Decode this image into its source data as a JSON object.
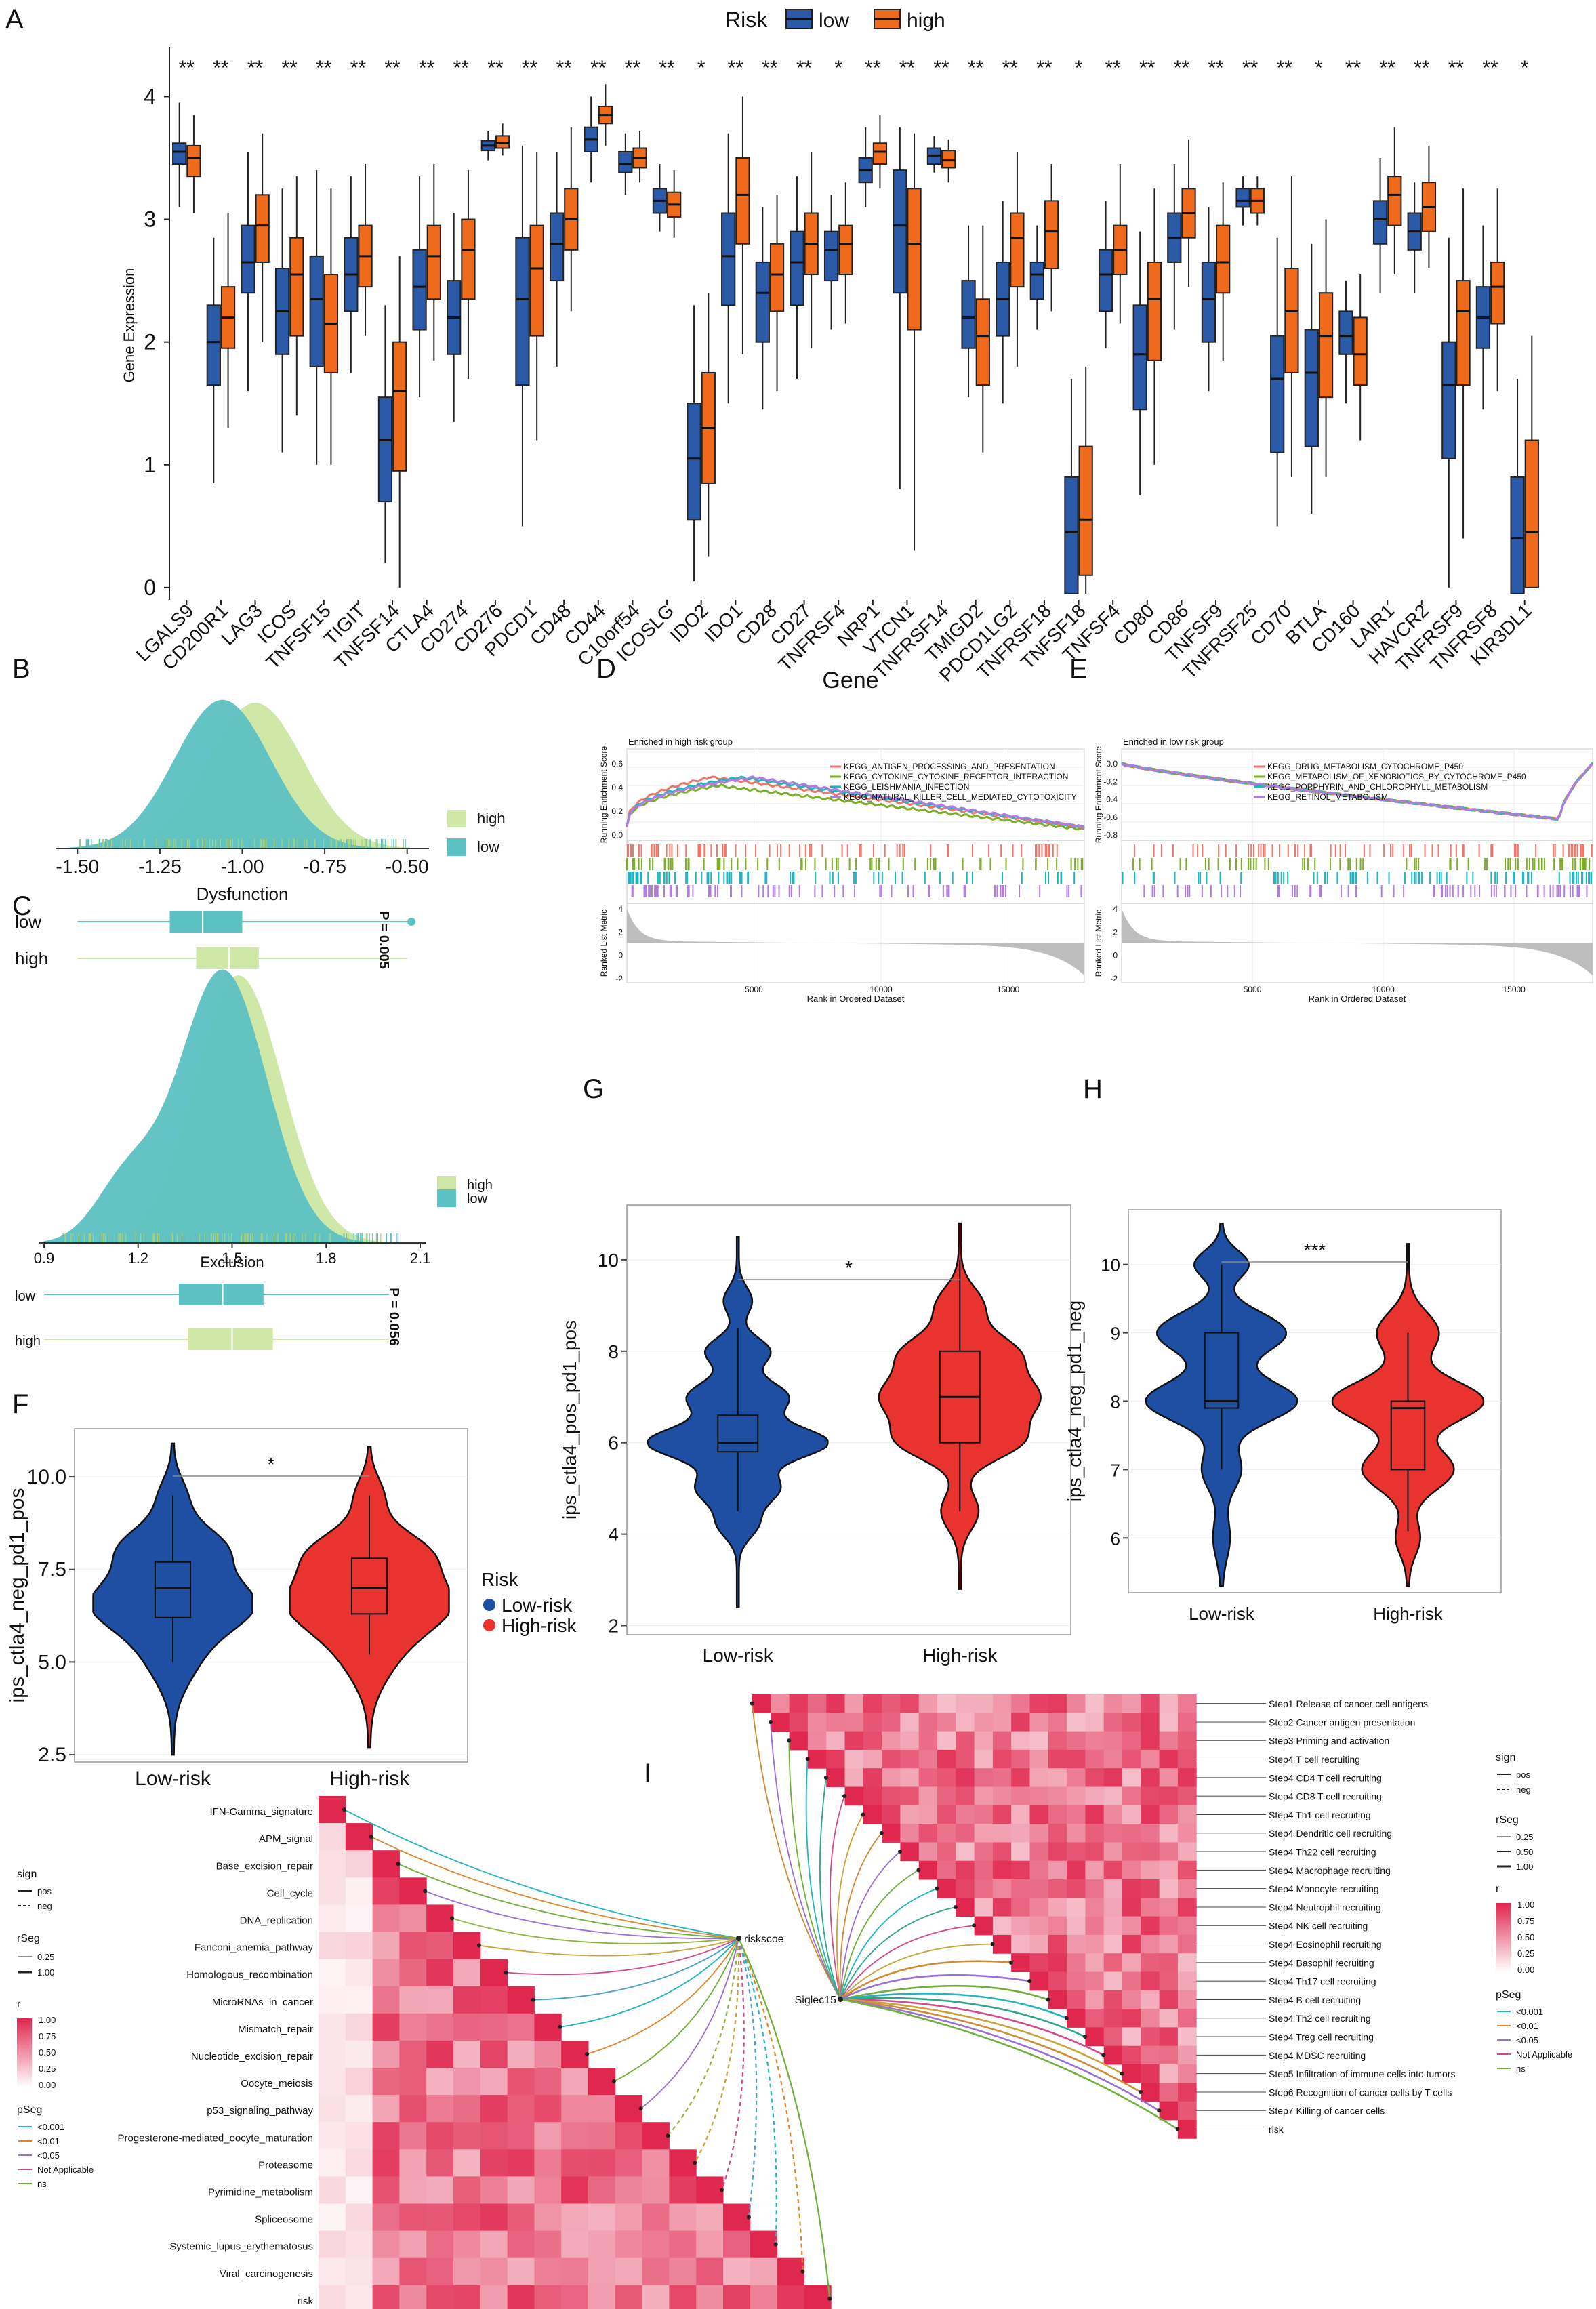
{
  "colors": {
    "low": "#2a5aa8",
    "high": "#f06a1c",
    "low_dark": "#1e4b96",
    "high_dark": "#c9510f",
    "teal": "#5cc1c2",
    "lightgreen": "#cfe8a8",
    "red": "#e8332f",
    "blue": "#1e4fa3",
    "heat": "#e0284f"
  },
  "panel_labels": [
    "A",
    "B",
    "C",
    "D",
    "E",
    "F",
    "G",
    "H",
    "I"
  ],
  "chart_data": [
    {
      "id": "A",
      "type": "box",
      "ylabel": "Gene Expression",
      "xlabel": "Gene",
      "legend_title": "Risk",
      "legend": [
        "low",
        "high"
      ],
      "ylim": [
        -0.1,
        4.4
      ],
      "yticks": [
        0,
        1,
        2,
        3,
        4
      ],
      "categories": [
        "LGALS9",
        "CD200R1",
        "LAG3",
        "ICOS",
        "TNFSF15",
        "TIGIT",
        "TNFSF14",
        "CTLA4",
        "CD274",
        "CD276",
        "PDCD1",
        "CD48",
        "CD44",
        "C10orf54",
        "ICOSLG",
        "IDO2",
        "IDO1",
        "CD28",
        "CD27",
        "TNFRSF4",
        "NRP1",
        "VTCN1",
        "TNFRSF14",
        "TMIGD2",
        "PDCD1LG2",
        "TNFRSF18",
        "TNFSF18",
        "TNFSF4",
        "CD80",
        "CD86",
        "TNFSF9",
        "TNFRSF25",
        "CD70",
        "BTLA",
        "CD160",
        "LAIR1",
        "HAVCR2",
        "TNFRSF9",
        "TNFRSF8",
        "KIR3DL1"
      ],
      "significance": [
        "**",
        "**",
        "**",
        "**",
        "**",
        "**",
        "**",
        "**",
        "**",
        "**",
        "**",
        "**",
        "**",
        "**",
        "**",
        "*",
        "**",
        "**",
        "**",
        "*",
        "**",
        "**",
        "**",
        "**",
        "**",
        "**",
        "*",
        "**",
        "**",
        "**",
        "**",
        "**",
        "**",
        "*",
        "**",
        "**",
        "**",
        "**",
        "**",
        "*"
      ],
      "series": [
        {
          "name": "low",
          "boxes": [
            [
              3.1,
              3.45,
              3.55,
              3.62,
              3.95
            ],
            [
              0.85,
              1.65,
              2.0,
              2.3,
              2.85
            ],
            [
              1.6,
              2.4,
              2.65,
              2.95,
              3.55
            ],
            [
              1.1,
              1.9,
              2.25,
              2.6,
              3.25
            ],
            [
              1.0,
              1.8,
              2.35,
              2.7,
              3.4
            ],
            [
              1.75,
              2.25,
              2.55,
              2.85,
              3.35
            ],
            [
              0.2,
              0.7,
              1.2,
              1.55,
              2.3
            ],
            [
              1.55,
              2.1,
              2.45,
              2.75,
              3.35
            ],
            [
              1.35,
              1.9,
              2.2,
              2.5,
              3.05
            ],
            [
              3.48,
              3.56,
              3.6,
              3.64,
              3.72
            ],
            [
              0.5,
              1.65,
              2.35,
              2.85,
              3.6
            ],
            [
              1.8,
              2.5,
              2.8,
              3.05,
              3.55
            ],
            [
              3.3,
              3.55,
              3.65,
              3.75,
              4.0
            ],
            [
              3.2,
              3.38,
              3.45,
              3.55,
              3.7
            ],
            [
              2.9,
              3.05,
              3.15,
              3.25,
              3.45
            ],
            [
              0.05,
              0.55,
              1.05,
              1.5,
              2.3
            ],
            [
              1.5,
              2.3,
              2.7,
              3.05,
              3.7
            ],
            [
              1.45,
              2.0,
              2.4,
              2.65,
              3.1
            ],
            [
              1.7,
              2.3,
              2.65,
              2.9,
              3.35
            ],
            [
              2.1,
              2.5,
              2.75,
              2.9,
              3.2
            ],
            [
              3.1,
              3.3,
              3.4,
              3.5,
              3.75
            ],
            [
              0.8,
              2.4,
              2.95,
              3.4,
              3.75
            ],
            [
              3.38,
              3.45,
              3.52,
              3.58,
              3.68
            ],
            [
              1.55,
              1.95,
              2.2,
              2.5,
              2.95
            ],
            [
              1.5,
              2.05,
              2.35,
              2.65,
              3.15
            ],
            [
              2.1,
              2.35,
              2.55,
              2.65,
              2.95
            ],
            [
              -0.05,
              -0.05,
              0.45,
              0.9,
              1.7
            ],
            [
              1.95,
              2.25,
              2.55,
              2.75,
              3.15
            ],
            [
              0.75,
              1.45,
              1.9,
              2.3,
              2.9
            ],
            [
              2.1,
              2.65,
              2.85,
              3.05,
              3.45
            ],
            [
              1.6,
              2.0,
              2.35,
              2.65,
              3.1
            ],
            [
              2.95,
              3.1,
              3.15,
              3.25,
              3.35
            ],
            [
              0.5,
              1.1,
              1.7,
              2.05,
              2.85
            ],
            [
              0.6,
              1.15,
              1.75,
              2.1,
              2.8
            ],
            [
              1.5,
              1.9,
              2.05,
              2.25,
              2.5
            ],
            [
              2.4,
              2.8,
              3.0,
              3.15,
              3.5
            ],
            [
              2.4,
              2.75,
              2.9,
              3.05,
              3.3
            ],
            [
              0.0,
              1.05,
              1.65,
              2.0,
              2.85
            ],
            [
              1.45,
              1.95,
              2.2,
              2.45,
              2.95
            ],
            [
              -0.05,
              -0.05,
              0.4,
              0.9,
              1.7
            ]
          ]
        },
        {
          "name": "high",
          "boxes": [
            [
              3.05,
              3.35,
              3.5,
              3.6,
              3.85
            ],
            [
              1.3,
              1.95,
              2.2,
              2.45,
              3.05
            ],
            [
              2.0,
              2.65,
              2.95,
              3.2,
              3.7
            ],
            [
              1.4,
              2.05,
              2.55,
              2.85,
              3.35
            ],
            [
              1.0,
              1.75,
              2.15,
              2.55,
              3.25
            ],
            [
              2.05,
              2.45,
              2.7,
              2.95,
              3.45
            ],
            [
              0.0,
              0.95,
              1.6,
              2.0,
              2.7
            ],
            [
              1.85,
              2.35,
              2.7,
              2.95,
              3.45
            ],
            [
              1.7,
              2.35,
              2.75,
              3.0,
              3.4
            ],
            [
              3.52,
              3.58,
              3.62,
              3.68,
              3.78
            ],
            [
              1.2,
              2.05,
              2.6,
              2.95,
              3.55
            ],
            [
              2.25,
              2.75,
              3.0,
              3.25,
              3.75
            ],
            [
              3.6,
              3.78,
              3.85,
              3.92,
              4.1
            ],
            [
              3.3,
              3.42,
              3.5,
              3.58,
              3.72
            ],
            [
              2.85,
              3.02,
              3.12,
              3.22,
              3.4
            ],
            [
              0.25,
              0.85,
              1.3,
              1.75,
              2.4
            ],
            [
              1.9,
              2.8,
              3.2,
              3.5,
              4.0
            ],
            [
              1.6,
              2.25,
              2.55,
              2.8,
              3.2
            ],
            [
              1.95,
              2.55,
              2.8,
              3.05,
              3.55
            ],
            [
              2.15,
              2.55,
              2.8,
              2.95,
              3.3
            ],
            [
              3.25,
              3.45,
              3.55,
              3.62,
              3.85
            ],
            [
              0.3,
              2.1,
              2.8,
              3.25,
              3.7
            ],
            [
              3.3,
              3.42,
              3.48,
              3.56,
              3.65
            ],
            [
              1.1,
              1.65,
              2.05,
              2.35,
              2.95
            ],
            [
              1.8,
              2.45,
              2.85,
              3.05,
              3.55
            ],
            [
              2.25,
              2.6,
              2.9,
              3.15,
              3.45
            ],
            [
              -0.05,
              0.1,
              0.55,
              1.15,
              1.8
            ],
            [
              2.15,
              2.55,
              2.75,
              2.95,
              3.45
            ],
            [
              1.0,
              1.85,
              2.35,
              2.65,
              3.25
            ],
            [
              2.45,
              2.85,
              3.05,
              3.25,
              3.65
            ],
            [
              1.85,
              2.4,
              2.65,
              2.95,
              3.3
            ],
            [
              2.95,
              3.05,
              3.15,
              3.25,
              3.35
            ],
            [
              0.9,
              1.75,
              2.25,
              2.6,
              3.35
            ],
            [
              0.9,
              1.55,
              2.05,
              2.4,
              3.0
            ],
            [
              1.2,
              1.65,
              1.9,
              2.2,
              2.55
            ],
            [
              2.55,
              2.95,
              3.2,
              3.35,
              3.75
            ],
            [
              2.6,
              2.9,
              3.1,
              3.3,
              3.6
            ],
            [
              0.4,
              1.65,
              2.25,
              2.5,
              3.25
            ],
            [
              1.6,
              2.15,
              2.45,
              2.65,
              3.25
            ],
            [
              0.0,
              0.0,
              0.45,
              1.2,
              2.05
            ]
          ]
        }
      ]
    },
    {
      "id": "B",
      "type": "density",
      "xlabel": "Dysfunction",
      "xticks": [
        "-1.50",
        "-1.25",
        "-1.00",
        "-0.75",
        "-0.50"
      ],
      "xlim": [
        -1.55,
        -0.45
      ],
      "legend": [
        "high",
        "low"
      ],
      "pvalue": "P = 0.005",
      "box_labels": [
        "low",
        "high"
      ],
      "low_peak": -1.06,
      "high_peak": -0.96,
      "box_low": [
        -1.5,
        -1.22,
        -1.12,
        -1.0,
        -0.5
      ],
      "box_high": [
        -1.5,
        -1.14,
        -1.04,
        -0.95,
        -0.5
      ]
    },
    {
      "id": "C",
      "type": "density",
      "xlabel": "Exclusion",
      "xticks": [
        "0.9",
        "1.2",
        "1.5",
        "1.8",
        "2.1"
      ],
      "xlim": [
        0.9,
        2.1
      ],
      "legend": [
        "high",
        "low"
      ],
      "pvalue": "P = 0.056",
      "box_labels": [
        "low",
        "high"
      ],
      "low_peak": 1.47,
      "high_peak": 1.52,
      "box_low": [
        0.9,
        1.33,
        1.47,
        1.6,
        2.0
      ],
      "box_high": [
        0.9,
        1.36,
        1.5,
        1.63,
        2.0
      ]
    },
    {
      "id": "D",
      "type": "gsea",
      "title": "Enriched in high risk group",
      "ylabel_top": "Running Enrichment Score",
      "ylabel_bottom": "Ranked List Metric",
      "xlabel": "Rank in Ordered Dataset",
      "xticks": [
        "5000",
        "10000",
        "15000"
      ],
      "yticks_top": [
        "0.6",
        "0.4",
        "0.2",
        "0.0"
      ],
      "yticks_bottom": [
        "4",
        "2",
        "0",
        "-2"
      ],
      "series": [
        {
          "name": "KEGG_ANTIGEN_PROCESSING_AND_PRESENTATION",
          "color": "#f0756a"
        },
        {
          "name": "KEGG_CYTOKINE_CYTOKINE_RECEPTOR_INTERACTION",
          "color": "#7cae28"
        },
        {
          "name": "KEGG_LEISHMANIA_INFECTION",
          "color": "#1fb6c1"
        },
        {
          "name": "KEGG_NATURAL_KILLER_CELL_MEDIATED_CYTOTOXICITY",
          "color": "#b07ddc"
        }
      ]
    },
    {
      "id": "E",
      "type": "gsea",
      "title": "Enriched in low risk group",
      "ylabel_top": "Running Enrichment Score",
      "ylabel_bottom": "Ranked List Metric",
      "xlabel": "Rank in Ordered Dataset",
      "xticks": [
        "5000",
        "10000",
        "15000"
      ],
      "yticks_top": [
        "0.0",
        "-0.2",
        "-0.4",
        "-0.6",
        "-0.8"
      ],
      "yticks_bottom": [
        "4",
        "2",
        "0",
        "-2"
      ],
      "series": [
        {
          "name": "KEGG_DRUG_METABOLISM_CYTOCHROME_P450",
          "color": "#f0756a"
        },
        {
          "name": "KEGG_METABOLISM_OF_XENOBIOTICS_BY_CYTOCHROME_P450",
          "color": "#7cae28"
        },
        {
          "name": "KEGG_PORPHYRIN_AND_CHLOROPHYLL_METABOLISM",
          "color": "#1fb6c1"
        },
        {
          "name": "KEGG_RETINOL_METABOLISM",
          "color": "#b07ddc"
        }
      ]
    },
    {
      "id": "F",
      "type": "violin",
      "ylabel": "ips_ctla4_neg_pd1_pos",
      "categories": [
        "Low-risk",
        "High-risk"
      ],
      "yticks": [
        "2.5",
        "5.0",
        "7.5",
        "10.0"
      ],
      "ylim": [
        2.3,
        11.3
      ],
      "legend_title": "Risk",
      "legend": [
        "Low-risk",
        "High-risk"
      ],
      "significance": "*",
      "boxes": [
        [
          5.0,
          6.2,
          7.0,
          7.7,
          9.5
        ],
        [
          5.2,
          6.3,
          7.0,
          7.8,
          9.5
        ]
      ]
    },
    {
      "id": "G",
      "type": "violin",
      "ylabel": "ips_ctla4_pos_pd1_pos",
      "categories": [
        "Low-risk",
        "High-risk"
      ],
      "yticks": [
        "2",
        "4",
        "6",
        "8",
        "10"
      ],
      "ylim": [
        1.8,
        11.2
      ],
      "significance": "*",
      "boxes": [
        [
          4.5,
          5.8,
          6.0,
          6.6,
          8.5
        ],
        [
          4.5,
          6.0,
          7.0,
          8.0,
          10.0
        ]
      ]
    },
    {
      "id": "H",
      "type": "violin",
      "ylabel": "ips_ctla4_neg_pd1_neg",
      "categories": [
        "Low-risk",
        "High-risk"
      ],
      "yticks": [
        "6",
        "7",
        "8",
        "9",
        "10"
      ],
      "ylim": [
        5.2,
        10.8
      ],
      "significance": "***",
      "boxes": [
        [
          7.0,
          7.9,
          8.0,
          9.0,
          10.0
        ],
        [
          6.1,
          7.0,
          7.9,
          8.0,
          9.0
        ]
      ]
    },
    {
      "id": "I",
      "type": "heatmap",
      "pathways": [
        "IFN-Gamma_signature",
        "APM_signal",
        "Base_excision_repair",
        "Cell_cycle",
        "DNA_replication",
        "Fanconi_anemia_pathway",
        "Homologous_recombination",
        "MicroRNAs_in_cancer",
        "Mismatch_repair",
        "Nucleotide_excision_repair",
        "Oocyte_meiosis",
        "p53_signaling_pathway",
        "Progesterone-mediated_oocyte_maturation",
        "Proteasome",
        "Pyrimidine_metabolism",
        "Spliceosome",
        "Systemic_lupus_erythematosus",
        "Viral_carcinogenesis",
        "risk"
      ],
      "node1": "riskscoe",
      "steps": [
        "Step1 Release of cancer cell antigens",
        "Step2 Cancer antigen presentation",
        "Step3 Priming and activation",
        "Step4 T cell recruiting",
        "Step4 CD4 T cell recruiting",
        "Step4 CD8 T cell recruiting",
        "Step4 Th1 cell recruiting",
        "Step4 Dendritic cell recruiting",
        "Step4 Th22 cell recruiting",
        "Step4 Macrophage recruiting",
        "Step4 Monocyte recruiting",
        "Step4 Neutrophil recruiting",
        "Step4 NK cell recruiting",
        "Step4 Eosinophil recruiting",
        "Step4 Basophil recruiting",
        "Step4 Th17 cell recruiting",
        "Step4 B cell recruiting",
        "Step4 Th2 cell recruiting",
        "Step4 Treg cell recruiting",
        "Step4 MDSC recruiting",
        "Step5 Infiltration of immune cells into tumors",
        "Step6 Recognition of cancer cells by T cells",
        "Step7 Killing of cancer cells",
        "risk"
      ],
      "node2": "Siglec15",
      "legend": {
        "sign_title": "sign",
        "sign": [
          "pos",
          "neg"
        ],
        "rseg_title": "rSeg",
        "rseg_left": [
          "0.25",
          "1.00"
        ],
        "rseg_right": [
          "0.25",
          "0.50",
          "1.00"
        ],
        "r_title": "r",
        "r_left": [
          "1.00",
          "0.75",
          "0.50",
          "0.25",
          "0.00"
        ],
        "r_right": [
          "1.00",
          "0.75",
          "0.50",
          "0.25",
          "0.00"
        ],
        "pseg_title": "pSeg",
        "pseg": [
          "<0.001",
          "<0.01",
          "<0.05",
          "Not Applicable",
          "ns"
        ]
      }
    }
  ]
}
